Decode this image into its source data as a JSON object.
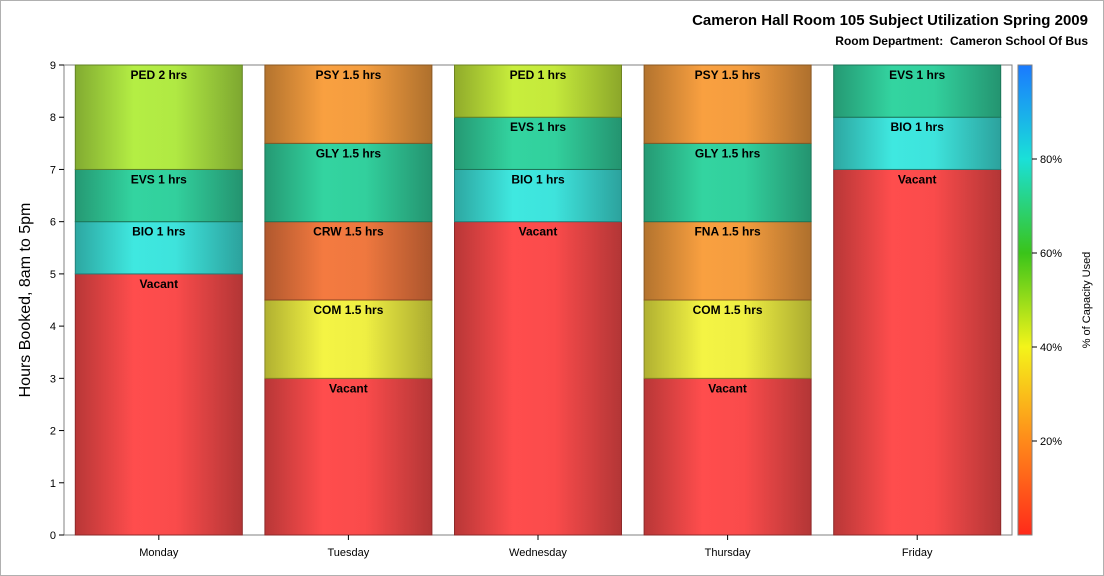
{
  "chart_data": {
    "type": "bar",
    "stacked": true,
    "title": "Cameron Hall Room 105 Subject Utilization Spring 2009",
    "subtitle": "Room Department:  Cameron School Of Bus",
    "ylabel": "Hours Booked, 8am to 5pm",
    "ylim": [
      0,
      9
    ],
    "yticks": [
      "0",
      "1",
      "2",
      "3",
      "4",
      "5",
      "6",
      "7",
      "8",
      "9"
    ],
    "categories": [
      "Monday",
      "Tuesday",
      "Wednesday",
      "Thursday",
      "Friday"
    ],
    "stacks": [
      {
        "day": "Monday",
        "segments": [
          {
            "label": "Vacant",
            "hours": 5,
            "color": "#ff4d4d"
          },
          {
            "label": "BIO 1 hrs",
            "hours": 1,
            "color": "#3fe8e0"
          },
          {
            "label": "EVS 1 hrs",
            "hours": 1,
            "color": "#33d4a0"
          },
          {
            "label": "PED 2 hrs",
            "hours": 2,
            "color": "#b4ee44"
          }
        ]
      },
      {
        "day": "Tuesday",
        "segments": [
          {
            "label": "Vacant",
            "hours": 3,
            "color": "#ff4d4d"
          },
          {
            "label": "COM 1.5 hrs",
            "hours": 1.5,
            "color": "#f4f444"
          },
          {
            "label": "CRW 1.5 hrs",
            "hours": 1.5,
            "color": "#f47a40"
          },
          {
            "label": "GLY 1.5 hrs",
            "hours": 1.5,
            "color": "#33d4a0"
          },
          {
            "label": "PSY 1.5 hrs",
            "hours": 1.5,
            "color": "#f9a040"
          }
        ]
      },
      {
        "day": "Wednesday",
        "segments": [
          {
            "label": "Vacant",
            "hours": 6,
            "color": "#ff4d4d"
          },
          {
            "label": "BIO 1 hrs",
            "hours": 1,
            "color": "#3fe8e0"
          },
          {
            "label": "EVS 1 hrs",
            "hours": 1,
            "color": "#33d4a0"
          },
          {
            "label": "PED 1 hrs",
            "hours": 1,
            "color": "#c8ee3c"
          }
        ]
      },
      {
        "day": "Thursday",
        "segments": [
          {
            "label": "Vacant",
            "hours": 3,
            "color": "#ff4d4d"
          },
          {
            "label": "COM 1.5 hrs",
            "hours": 1.5,
            "color": "#f4f444"
          },
          {
            "label": "FNA 1.5 hrs",
            "hours": 1.5,
            "color": "#f9a040"
          },
          {
            "label": "GLY 1.5 hrs",
            "hours": 1.5,
            "color": "#33d4a0"
          },
          {
            "label": "PSY 1.5 hrs",
            "hours": 1.5,
            "color": "#f9a040"
          }
        ]
      },
      {
        "day": "Friday",
        "segments": [
          {
            "label": "Vacant",
            "hours": 7,
            "color": "#ff4d4d"
          },
          {
            "label": "BIO 1 hrs",
            "hours": 1,
            "color": "#3fe8e0"
          },
          {
            "label": "EVS 1 hrs",
            "hours": 1,
            "color": "#33d4a0"
          }
        ]
      }
    ],
    "colorbar": {
      "label": "% of Capacity Used",
      "ticks": [
        "20%",
        "40%",
        "60%",
        "80%"
      ],
      "tick_values": [
        20,
        40,
        60,
        80
      ],
      "range": [
        0,
        100
      ],
      "gradient_colors": [
        "#ff2a1a",
        "#ff8a1a",
        "#f4f41a",
        "#3ac41a",
        "#1ae0d8",
        "#1a7aff"
      ]
    },
    "grid": false
  }
}
